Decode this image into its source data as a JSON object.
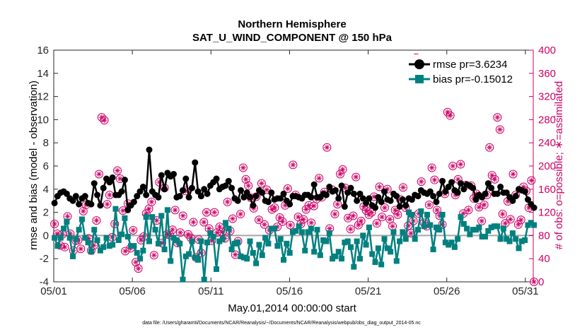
{
  "chart_data": {
    "type": "line",
    "title": "Northern Hemisphere",
    "subtitle": "SAT_U_WIND_COMPONENT @ 150 hPa",
    "xlabel": "May.01,2014 00:00:00 start",
    "ylabel": "rmse and bias (model - observation)",
    "y2label": "# of obs: o=possible; ∗=assimilated",
    "footnote": "data file: /Users/gharamti/Documents/NCAR/Reanalysis/~/Documents/NCAR/Reanalysis/webpub/obs_diag_output_2014-05.nc",
    "xlim": [
      1,
      31.5
    ],
    "ylim": [
      -4,
      16
    ],
    "y2lim": [
      0,
      400
    ],
    "x_ticks": [
      1,
      6,
      11,
      16,
      21,
      26,
      31
    ],
    "x_tick_labels": [
      "05/01",
      "05/06",
      "05/11",
      "05/16",
      "05/21",
      "05/26",
      "05/31"
    ],
    "y_ticks": [
      -4,
      -2,
      0,
      2,
      4,
      6,
      8,
      10,
      12,
      14,
      16
    ],
    "y2_ticks": [
      0,
      40,
      80,
      120,
      160,
      200,
      240,
      280,
      320,
      360,
      400
    ],
    "grid": false,
    "legend_position": "top-right",
    "colors": {
      "rmse": "#000000",
      "bias": "#00807f",
      "obs": "#cc0066",
      "zero_line": "#a6a6a6"
    },
    "series": [
      {
        "name": "rmse pr=3.6234",
        "values": [
          2.8,
          3.4,
          3.7,
          3.8,
          3.6,
          3.2,
          3.0,
          3.4,
          2.7,
          3.2,
          3.4,
          2.8,
          2.7,
          4.5,
          3.5,
          2.6,
          4.1,
          4.9,
          4.6,
          5.0,
          3.5,
          3.5,
          3.8,
          4.8,
          2.2,
          2.6,
          2.9,
          3.4,
          3.8,
          4.2,
          3.5,
          7.4,
          3.8,
          3.5,
          3.3,
          5.2,
          4.0,
          5.4,
          5.1,
          5.3,
          3.3,
          3.4,
          3.9,
          4.9,
          3.3,
          4.1,
          6.3,
          3.8,
          3.4,
          4.0,
          3.6,
          4.3,
          4.6,
          4.9,
          4.0,
          4.2,
          4.3,
          4.7,
          4.1,
          3.2,
          3.0,
          3.9,
          3.3,
          3.7,
          3.3,
          2.6,
          3.4,
          3.9,
          3.7,
          3.0,
          2.9,
          3.7,
          3.1,
          3.2,
          3.2,
          3.6,
          3.0,
          2.7,
          3.4,
          3.4,
          3.3,
          3.2,
          3.5,
          3.5,
          3.3,
          4.4,
          3.3,
          3.3,
          3.6,
          3.5,
          4.2,
          3.8,
          3.9,
          3.2,
          4.3,
          2.5,
          3.7,
          4.1,
          3.6,
          3.0,
          3.6,
          3.2,
          2.8,
          3.2,
          2.6,
          2.4,
          3.3,
          2.9,
          3.8,
          3.1,
          3.0,
          3.6,
          3.4,
          2.5,
          3.1,
          2.6,
          3.2,
          3.1,
          3.5,
          3.4,
          3.9,
          3.7,
          3.6,
          3.8,
          3.4,
          2.9,
          3.6,
          4.7,
          3.8,
          4.2,
          4.6,
          3.9,
          3.7,
          4.5,
          4.0,
          4.4,
          4.3,
          4.1,
          3.1,
          3.5,
          3.3,
          3.6,
          4.5,
          4.1,
          3.6,
          3.6,
          4.2,
          3.7,
          3.7,
          3.3,
          3.0,
          3.4,
          4.0,
          3.9,
          3.8,
          3.1,
          2.7,
          2.4
        ]
      },
      {
        "name": "bias pr=-0.15012",
        "values": [
          -0.2,
          -0.9,
          -0.2,
          0.6,
          1.2,
          -0.2,
          -1.8,
          -0.3,
          0.5,
          1.4,
          -0.2,
          -0.6,
          -1.4,
          0.5,
          -0.4,
          -1.3,
          -1.0,
          -0.2,
          -0.9,
          -0.8,
          2.3,
          -0.4,
          0.1,
          1.5,
          -0.1,
          -0.9,
          -0.9,
          -1.5,
          -2.0,
          -1.3,
          1.6,
          -0.5,
          1.6,
          0.5,
          -0.7,
          1.7,
          -1.2,
          2.2,
          -2.2,
          -0.2,
          -0.4,
          -0.7,
          -3.8,
          -1.8,
          -1.6,
          -0.5,
          -1.9,
          -2.1,
          -0.5,
          -3.8,
          -0.6,
          0.2,
          -0.1,
          -2.9,
          -0.5,
          -0.3,
          1.1,
          0.6,
          -1.2,
          -0.7,
          -0.6,
          -1.8,
          -1.9,
          -2.0,
          -0.5,
          -1.5,
          -2.4,
          -0.8,
          -1.7,
          -0.2,
          -0.7,
          0.6,
          0.6,
          -0.9,
          -0.3,
          -2.1,
          -0.7,
          -1.5,
          0.3,
          0.4,
          0.8,
          0.3,
          -1.3,
          0.3,
          0.6,
          -1.4,
          0.5,
          -1.7,
          -0.4,
          -0.5,
          0.2,
          -2.0,
          -1.8,
          -1.4,
          -2.0,
          -0.6,
          -0.5,
          -1.0,
          -2.7,
          -0.5,
          -2.0,
          0.0,
          -0.8,
          0.7,
          -1.6,
          -2.3,
          -1.1,
          -2.5,
          -0.3,
          -1.1,
          -1.4,
          0.3,
          -2.2,
          -0.5,
          0.3,
          -0.3,
          2.0,
          1.8,
          -0.3,
          0.5,
          2.1,
          0.8,
          1.8,
          0.9,
          -1.2,
          0.7,
          0.5,
          1.8,
          -0.6,
          -0.8,
          -0.6,
          -1.0,
          -0.3,
          1.6,
          1.0,
          0.6,
          0.1,
          0.5,
          0.5,
          0.7,
          -0.1,
          -0.1,
          0.4,
          0.7,
          0.8,
          0.8,
          -0.3,
          0.6,
          -0.3,
          -0.5,
          0.2,
          -0.3,
          -1.1,
          -0.5,
          -0.4,
          0.9,
          1.1,
          0.9
        ]
      },
      {
        "name": "# of obs (possible / assimilated)",
        "axis": "right",
        "points": [
          [
            1.05,
            100
          ],
          [
            1.22,
            83
          ],
          [
            1.4,
            63
          ],
          [
            1.55,
            82
          ],
          [
            1.7,
            60
          ],
          [
            1.88,
            113
          ],
          [
            2.05,
            83
          ],
          [
            2.25,
            54
          ],
          [
            2.4,
            71
          ],
          [
            2.55,
            72
          ],
          [
            2.72,
            57
          ],
          [
            2.88,
            122
          ],
          [
            3.05,
            133
          ],
          [
            3.22,
            75
          ],
          [
            3.38,
            54
          ],
          [
            3.55,
            63
          ],
          [
            3.72,
            106
          ],
          [
            3.88,
            186
          ],
          [
            4.05,
            284
          ],
          [
            4.22,
            279
          ],
          [
            4.4,
            134
          ],
          [
            4.55,
            150
          ],
          [
            4.72,
            77
          ],
          [
            4.88,
            100
          ],
          [
            5.05,
            192
          ],
          [
            5.22,
            178
          ],
          [
            5.4,
            123
          ],
          [
            5.55,
            53
          ],
          [
            5.72,
            135
          ],
          [
            5.88,
            58
          ],
          [
            6.05,
            89
          ],
          [
            6.22,
            34
          ],
          [
            6.38,
            23
          ],
          [
            6.55,
            72
          ],
          [
            6.72,
            78
          ],
          [
            6.88,
            118
          ],
          [
            7.05,
            126
          ],
          [
            7.22,
            138
          ],
          [
            7.38,
            46
          ],
          [
            7.55,
            106
          ],
          [
            7.72,
            172
          ],
          [
            7.88,
            67
          ],
          [
            8.05,
            162
          ],
          [
            8.22,
            82
          ],
          [
            8.38,
            81
          ],
          [
            8.55,
            90
          ],
          [
            8.72,
            124
          ],
          [
            8.88,
            67
          ],
          [
            9.05,
            85
          ],
          [
            9.22,
            114
          ],
          [
            9.38,
            157
          ],
          [
            9.55,
            82
          ],
          [
            9.72,
            76
          ],
          [
            9.88,
            103
          ],
          [
            10.05,
            42
          ],
          [
            10.22,
            73
          ],
          [
            10.38,
            50
          ],
          [
            10.55,
            103
          ],
          [
            10.72,
            120
          ],
          [
            10.88,
            92
          ],
          [
            11.05,
            71
          ],
          [
            11.22,
            120
          ],
          [
            11.38,
            85
          ],
          [
            11.55,
            95
          ],
          [
            11.72,
            86
          ],
          [
            11.88,
            75
          ],
          [
            12.05,
            138
          ],
          [
            12.22,
            88
          ],
          [
            12.38,
            109
          ],
          [
            12.55,
            47
          ],
          [
            12.72,
            70
          ],
          [
            12.88,
            117
          ],
          [
            13.05,
            197
          ],
          [
            13.22,
            177
          ],
          [
            13.38,
            166
          ],
          [
            13.55,
            145
          ],
          [
            13.72,
            127
          ],
          [
            13.88,
            147
          ],
          [
            14.05,
            107
          ],
          [
            14.22,
            170
          ],
          [
            14.4,
            99
          ],
          [
            14.55,
            159
          ],
          [
            14.72,
            89
          ],
          [
            14.88,
            125
          ],
          [
            15.05,
            128
          ],
          [
            15.22,
            95
          ],
          [
            15.38,
            111
          ],
          [
            15.55,
            104
          ],
          [
            15.72,
            132
          ],
          [
            15.88,
            161
          ],
          [
            16.05,
            98
          ],
          [
            16.22,
            202
          ],
          [
            16.38,
            150
          ],
          [
            16.55,
            112
          ],
          [
            16.72,
            100
          ],
          [
            16.88,
            108
          ],
          [
            17.05,
            125
          ],
          [
            17.22,
            132
          ],
          [
            17.38,
            102
          ],
          [
            17.55,
            131
          ],
          [
            17.72,
            143
          ],
          [
            17.88,
            179
          ],
          [
            18.05,
            146
          ],
          [
            18.22,
            155
          ],
          [
            18.38,
            232
          ],
          [
            18.55,
            92
          ],
          [
            18.72,
            159
          ],
          [
            18.88,
            117
          ],
          [
            19.05,
            134
          ],
          [
            19.22,
            186
          ],
          [
            19.38,
            194
          ],
          [
            19.55,
            162
          ],
          [
            19.72,
            110
          ],
          [
            19.88,
            91
          ],
          [
            20.05,
            114
          ],
          [
            20.22,
            181
          ],
          [
            20.38,
            98
          ],
          [
            20.55,
            105
          ],
          [
            20.72,
            130
          ],
          [
            20.88,
            123
          ],
          [
            21.05,
            116
          ],
          [
            21.22,
            120
          ],
          [
            21.38,
            147
          ],
          [
            21.55,
            101
          ],
          [
            21.72,
            164
          ],
          [
            21.88,
            112
          ],
          [
            22.05,
            128
          ],
          [
            22.22,
            160
          ],
          [
            22.38,
            108
          ],
          [
            22.55,
            96
          ],
          [
            22.72,
            124
          ],
          [
            22.88,
            116
          ],
          [
            23.05,
            142
          ],
          [
            23.22,
            163
          ],
          [
            23.38,
            128
          ],
          [
            23.55,
            97
          ],
          [
            23.72,
            84
          ],
          [
            23.88,
            105
          ],
          [
            24.05,
            387
          ],
          [
            24.22,
            118
          ],
          [
            24.38,
            173
          ],
          [
            24.55,
            102
          ],
          [
            24.72,
            96
          ],
          [
            24.88,
            133
          ],
          [
            25.05,
            197
          ],
          [
            25.22,
            176
          ],
          [
            25.38,
            124
          ],
          [
            25.55,
            114
          ],
          [
            25.72,
            99
          ],
          [
            25.88,
            152
          ],
          [
            26.05,
            293
          ],
          [
            26.22,
            287
          ],
          [
            26.38,
            200
          ],
          [
            26.55,
            150
          ],
          [
            26.72,
            177
          ],
          [
            26.88,
            203
          ],
          [
            27.05,
            118
          ],
          [
            27.22,
            167
          ],
          [
            27.38,
            124
          ],
          [
            27.55,
            166
          ],
          [
            27.72,
            144
          ],
          [
            27.88,
            152
          ],
          [
            28.05,
            129
          ],
          [
            28.22,
            105
          ],
          [
            28.38,
            133
          ],
          [
            28.55,
            150
          ],
          [
            28.72,
            232
          ],
          [
            28.88,
            184
          ],
          [
            29.05,
            177
          ],
          [
            29.22,
            284
          ],
          [
            29.38,
            263
          ],
          [
            29.55,
            117
          ],
          [
            29.72,
            101
          ],
          [
            29.88,
            139
          ],
          [
            30.05,
            108
          ],
          [
            30.22,
            186
          ],
          [
            30.38,
            150
          ],
          [
            30.55,
            99
          ],
          [
            30.72,
            107
          ],
          [
            30.88,
            164
          ],
          [
            31.05,
            157
          ],
          [
            31.22,
            128
          ],
          [
            31.38,
            175
          ],
          [
            31.55,
            0
          ]
        ]
      }
    ]
  }
}
